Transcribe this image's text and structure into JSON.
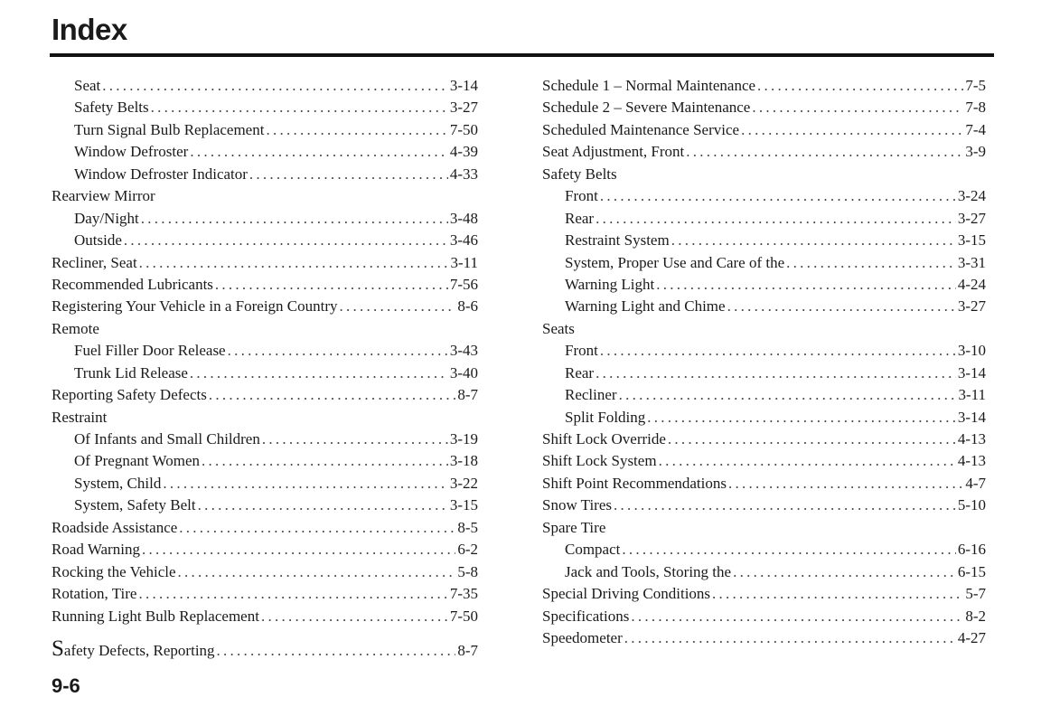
{
  "header": {
    "title": "Index"
  },
  "footer": {
    "page_number": "9-6"
  },
  "left_column": [
    {
      "label": "Seat",
      "page": "3-14",
      "level": 1
    },
    {
      "label": "Safety Belts",
      "page": "3-27",
      "level": 1
    },
    {
      "label": "Turn Signal Bulb Replacement",
      "page": "7-50",
      "level": 1
    },
    {
      "label": "Window Defroster",
      "page": "4-39",
      "level": 1
    },
    {
      "label": "Window Defroster Indicator",
      "page": "4-33",
      "level": 1
    },
    {
      "label": "Rearview Mirror",
      "page": "",
      "level": 0
    },
    {
      "label": "Day/Night",
      "page": "3-48",
      "level": 1
    },
    {
      "label": "Outside",
      "page": "3-46",
      "level": 1
    },
    {
      "label": "Recliner, Seat",
      "page": "3-11",
      "level": 0
    },
    {
      "label": "Recommended Lubricants",
      "page": "7-56",
      "level": 0
    },
    {
      "label": "Registering Your Vehicle in a Foreign Country",
      "page": "8-6",
      "level": 0
    },
    {
      "label": "Remote",
      "page": "",
      "level": 0
    },
    {
      "label": "Fuel Filler Door Release",
      "page": "3-43",
      "level": 1
    },
    {
      "label": "Trunk Lid Release",
      "page": "3-40",
      "level": 1
    },
    {
      "label": "Reporting Safety Defects",
      "page": "8-7",
      "level": 0
    },
    {
      "label": "Restraint",
      "page": "",
      "level": 0
    },
    {
      "label": "Of Infants and Small Children",
      "page": "3-19",
      "level": 1
    },
    {
      "label": "Of Pregnant Women",
      "page": "3-18",
      "level": 1
    },
    {
      "label": "System, Child",
      "page": "3-22",
      "level": 1
    },
    {
      "label": "System, Safety Belt",
      "page": "3-15",
      "level": 1
    },
    {
      "label": "Roadside Assistance",
      "page": "8-5",
      "level": 0
    },
    {
      "label": "Road Warning",
      "page": "6-2",
      "level": 0
    },
    {
      "label": "Rocking the Vehicle",
      "page": "5-8",
      "level": 0
    },
    {
      "label": "Rotation, Tire",
      "page": "7-35",
      "level": 0
    },
    {
      "label": "Running Light Bulb Replacement",
      "page": "7-50",
      "level": 0
    },
    {
      "label": "Safety Defects, Reporting",
      "page": "8-7",
      "level": 0,
      "section_start": true
    }
  ],
  "right_column": [
    {
      "label": "Schedule 1 – Normal Maintenance",
      "page": "7-5",
      "level": 0
    },
    {
      "label": "Schedule 2 – Severe Maintenance",
      "page": "7-8",
      "level": 0
    },
    {
      "label": "Scheduled Maintenance Service",
      "page": "7-4",
      "level": 0
    },
    {
      "label": "Seat Adjustment, Front",
      "page": "3-9",
      "level": 0
    },
    {
      "label": "Safety Belts",
      "page": "",
      "level": 0
    },
    {
      "label": "Front",
      "page": "3-24",
      "level": 1
    },
    {
      "label": "Rear",
      "page": "3-27",
      "level": 1
    },
    {
      "label": "Restraint System",
      "page": "3-15",
      "level": 1
    },
    {
      "label": "System, Proper Use and Care of the",
      "page": "3-31",
      "level": 1
    },
    {
      "label": "Warning Light",
      "page": "4-24",
      "level": 1
    },
    {
      "label": "Warning Light and Chime",
      "page": "3-27",
      "level": 1
    },
    {
      "label": "Seats",
      "page": "",
      "level": 0
    },
    {
      "label": "Front",
      "page": "3-10",
      "level": 1
    },
    {
      "label": "Rear",
      "page": "3-14",
      "level": 1
    },
    {
      "label": "Recliner",
      "page": "3-11",
      "level": 1
    },
    {
      "label": "Split Folding",
      "page": "3-14",
      "level": 1
    },
    {
      "label": "Shift Lock Override",
      "page": "4-13",
      "level": 0
    },
    {
      "label": "Shift Lock System",
      "page": "4-13",
      "level": 0
    },
    {
      "label": "Shift Point Recommendations",
      "page": "4-7",
      "level": 0
    },
    {
      "label": "Snow Tires",
      "page": "5-10",
      "level": 0
    },
    {
      "label": "Spare Tire",
      "page": "",
      "level": 0
    },
    {
      "label": "Compact",
      "page": "6-16",
      "level": 1
    },
    {
      "label": "Jack and Tools, Storing the",
      "page": "6-15",
      "level": 1
    },
    {
      "label": "Special Driving Conditions",
      "page": "5-7",
      "level": 0
    },
    {
      "label": "Specifications",
      "page": "8-2",
      "level": 0
    },
    {
      "label": "Speedometer",
      "page": "4-27",
      "level": 0
    }
  ]
}
